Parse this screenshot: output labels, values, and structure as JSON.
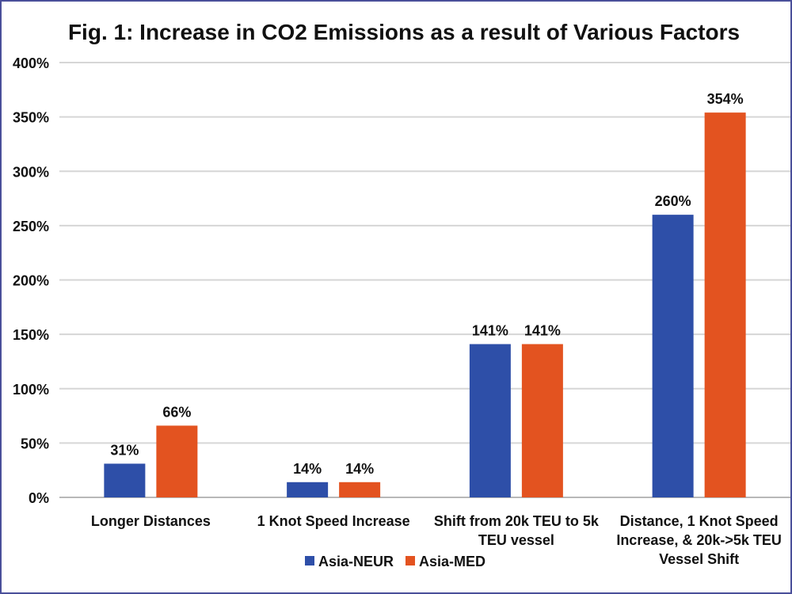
{
  "chart_data": {
    "type": "bar",
    "title": "Fig. 1: Increase in CO2 Emissions as a result of Various Factors",
    "categories": [
      [
        "Longer Distances"
      ],
      [
        "1 Knot Speed Increase"
      ],
      [
        "Shift from 20k TEU to 5k",
        "TEU vessel"
      ],
      [
        "Distance, 1 Knot Speed",
        "Increase, & 20k->5k TEU",
        "Vessel Shift"
      ]
    ],
    "series": [
      {
        "name": "Asia-NEUR",
        "color": "#2e4fa8",
        "values": [
          31,
          14,
          141,
          260
        ],
        "labels": [
          "31%",
          "14%",
          "141%",
          "260%"
        ]
      },
      {
        "name": "Asia-MED",
        "color": "#e35320",
        "values": [
          66,
          14,
          141,
          354
        ],
        "labels": [
          "66%",
          "14%",
          "141%",
          "354%"
        ]
      }
    ],
    "ylim": [
      0,
      400
    ],
    "yticks": [
      {
        "value": 0,
        "label": "0%"
      },
      {
        "value": 50,
        "label": "50%"
      },
      {
        "value": 100,
        "label": "100%"
      },
      {
        "value": 150,
        "label": "150%"
      },
      {
        "value": 200,
        "label": "200%"
      },
      {
        "value": 250,
        "label": "250%"
      },
      {
        "value": 300,
        "label": "300%"
      },
      {
        "value": 350,
        "label": "350%"
      },
      {
        "value": 400,
        "label": "400%"
      }
    ],
    "grid": true,
    "legend_position": "bottom-center",
    "xlabel": "",
    "ylabel": ""
  }
}
